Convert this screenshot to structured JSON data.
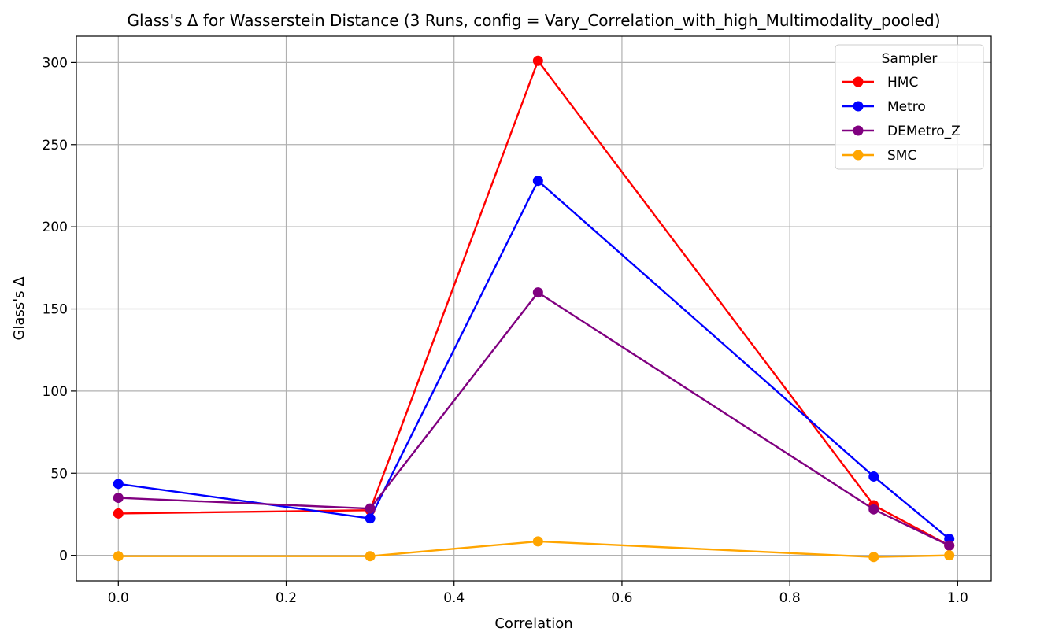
{
  "chart_data": {
    "type": "line",
    "title": "Glass's Δ for Wasserstein Distance (3 Runs, config = Vary_Correlation_with_high_Multimodality_pooled)",
    "xlabel": "Correlation",
    "ylabel": "Glass's Δ",
    "xlim": [
      -0.05,
      1.04
    ],
    "ylim": [
      -15.5,
      316
    ],
    "xticks": [
      0.0,
      0.2,
      0.4,
      0.6,
      0.8,
      1.0
    ],
    "xtick_labels": [
      "0.0",
      "0.2",
      "0.4",
      "0.6",
      "0.8",
      "1.0"
    ],
    "yticks": [
      0,
      50,
      100,
      150,
      200,
      250,
      300
    ],
    "ytick_labels": [
      "0",
      "50",
      "100",
      "150",
      "200",
      "250",
      "300"
    ],
    "grid": true,
    "legend": {
      "title": "Sampler",
      "placement": "top-right"
    },
    "x": [
      0.0,
      0.3,
      0.5,
      0.9,
      0.99
    ],
    "series": [
      {
        "name": "HMC",
        "color": "#ff0000",
        "values": [
          25.5,
          27.5,
          301,
          30.5,
          6
        ]
      },
      {
        "name": "Metro",
        "color": "#0000ff",
        "values": [
          43.5,
          22.5,
          228,
          48,
          10
        ]
      },
      {
        "name": "DEMetro_Z",
        "color": "#800080",
        "values": [
          35,
          28.5,
          160,
          28,
          6
        ]
      },
      {
        "name": "SMC",
        "color": "#ffa500",
        "values": [
          -0.5,
          -0.5,
          8.5,
          -1,
          0
        ]
      }
    ]
  }
}
